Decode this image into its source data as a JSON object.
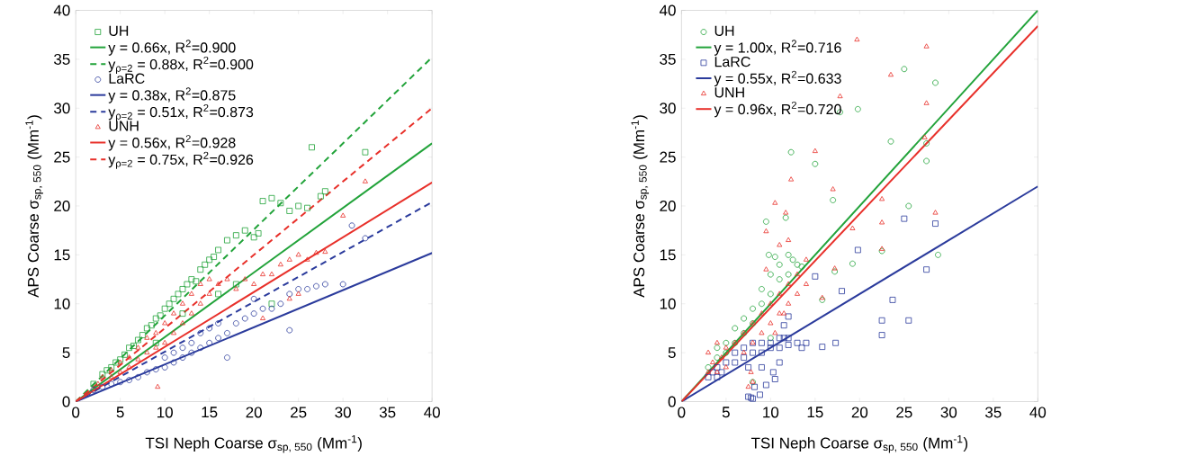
{
  "chart_data": [
    {
      "type": "scatter",
      "xlabel": "TSI Neph Coarse σ$_{sp, 550}$ (Mm$^{-1}$)",
      "ylabel": "APS Coarse σ$_{sp, 550}$ (Mm$^{-1}$)",
      "xlim": [
        0,
        40
      ],
      "ylim": [
        0,
        40
      ],
      "xticks": [
        0,
        5,
        10,
        15,
        20,
        25,
        30,
        35,
        40
      ],
      "yticks": [
        0,
        5,
        10,
        15,
        20,
        25,
        30,
        35,
        40
      ],
      "legend": "top left",
      "series": [
        {
          "name": "UH",
          "color": "#22a33a",
          "marker": "square",
          "x": [
            2,
            3,
            3.5,
            4,
            4.5,
            5,
            5.5,
            6,
            6.5,
            7,
            7.5,
            8,
            8.5,
            9,
            9.5,
            10,
            10.5,
            11,
            11.5,
            12,
            12.5,
            13,
            13.5,
            14,
            14.5,
            15,
            15.5,
            16,
            17,
            18,
            19,
            20,
            20.5,
            22,
            21,
            23,
            24,
            25,
            26,
            26.5,
            27.5,
            28,
            32.5,
            22,
            9,
            12,
            16,
            18
          ],
          "values": [
            1.8,
            2.8,
            3.2,
            3.5,
            4,
            4.3,
            4.8,
            5.5,
            5.7,
            6.3,
            6.8,
            7.5,
            7.8,
            8.5,
            8.8,
            9.5,
            10,
            10.5,
            11,
            11.5,
            12,
            12.5,
            12.3,
            13.5,
            14,
            14.5,
            14.8,
            15.5,
            16.5,
            17,
            17.5,
            16.8,
            17.2,
            20.8,
            20.5,
            20.3,
            19.5,
            20,
            19.8,
            26,
            21,
            21.5,
            25.5,
            10,
            6,
            9,
            11,
            12
          ]
        },
        {
          "name": "y = 0.66x, R$^{2}$=0.900",
          "color": "#22a33a",
          "type": "line",
          "line_style": "solid",
          "x": [
            0,
            40
          ],
          "values": [
            0,
            26.4
          ]
        },
        {
          "name": "y$_{ρ=2}$ = 0.88x, R$^{2}$=0.900",
          "color": "#22a33a",
          "type": "line",
          "line_style": "dashed",
          "x": [
            0,
            40
          ],
          "values": [
            0,
            35.2
          ]
        },
        {
          "name": "LaRC",
          "color": "#2b3b9c",
          "marker": "circle",
          "x": [
            2,
            3,
            4,
            5,
            6,
            7,
            8,
            9,
            10,
            10,
            11,
            11,
            12,
            12,
            13,
            13,
            14,
            14,
            15,
            15,
            16,
            16,
            17,
            17,
            18,
            19,
            20,
            21,
            22,
            23,
            24,
            24,
            25,
            26,
            27,
            28,
            30,
            31,
            32.5,
            20
          ],
          "values": [
            1.2,
            1.5,
            1.8,
            2,
            2.2,
            2.5,
            3,
            3.3,
            3.5,
            4.5,
            4,
            5,
            4.5,
            5.5,
            5,
            6,
            5.5,
            7,
            6,
            7.5,
            6.5,
            8,
            4.5,
            7,
            8,
            8.5,
            9,
            9.5,
            9.5,
            10,
            7.3,
            11,
            11.5,
            11.5,
            11.8,
            12,
            12,
            18,
            16.7,
            10.5
          ]
        },
        {
          "name": "y = 0.38x, R$^{2}$=0.875",
          "color": "#2b3b9c",
          "type": "line",
          "line_style": "solid",
          "x": [
            0,
            40
          ],
          "values": [
            0,
            15.2
          ]
        },
        {
          "name": "y$_{ρ=2}$ = 0.51x, R$^{2}$=0.873",
          "color": "#2b3b9c",
          "type": "line",
          "line_style": "dashed",
          "x": [
            0,
            40
          ],
          "values": [
            0,
            20.4
          ]
        },
        {
          "name": "UNH",
          "color": "#e8302a",
          "marker": "triangle",
          "x": [
            2.5,
            3,
            4,
            4,
            5,
            5,
            6,
            6,
            7,
            7,
            8,
            8,
            9,
            9,
            9.2,
            10,
            10,
            11,
            11,
            12,
            12,
            13,
            13,
            14,
            14,
            15,
            15,
            16,
            17,
            18,
            19,
            20,
            21,
            22,
            23,
            24,
            25,
            26,
            27,
            28,
            30,
            32.5,
            24,
            25,
            21
          ],
          "values": [
            1.8,
            2.5,
            2.5,
            3.2,
            3,
            4,
            3.5,
            4.5,
            4.3,
            5.5,
            5,
            6.5,
            5.5,
            7,
            1.5,
            6,
            8,
            7,
            9,
            8,
            10,
            9,
            11,
            10,
            12,
            11,
            12.5,
            12,
            12.5,
            11.5,
            12.5,
            12,
            13,
            13,
            14,
            14.5,
            15,
            14.5,
            15.2,
            15.3,
            19,
            22.5,
            10.5,
            11,
            8.5
          ]
        },
        {
          "name": "y = 0.56x, R$^{2}$=0.928",
          "color": "#e8302a",
          "type": "line",
          "line_style": "solid",
          "x": [
            0,
            40
          ],
          "values": [
            0,
            22.4
          ]
        },
        {
          "name": "y$_{ρ=2}$ = 0.75x, R$^{2}$=0.926",
          "color": "#e8302a",
          "type": "line",
          "line_style": "dashed",
          "x": [
            0,
            40
          ],
          "values": [
            0,
            30
          ]
        }
      ]
    },
    {
      "type": "scatter",
      "xlabel": "TSI Neph Coarse σ$_{sp, 550}$ (Mm$^{-1}$)",
      "ylabel": "APS Coarse σ$_{sp, 550}$ (Mm$^{-1}$)",
      "xlim": [
        0,
        40
      ],
      "ylim": [
        0,
        40
      ],
      "xticks": [
        0,
        5,
        10,
        15,
        20,
        25,
        30,
        35,
        40
      ],
      "yticks": [
        0,
        5,
        10,
        15,
        20,
        25,
        30,
        35,
        40
      ],
      "legend": "top left",
      "series": [
        {
          "name": "UH",
          "color": "#22a33a",
          "marker": "circle",
          "x": [
            3,
            4,
            4,
            5,
            5,
            6,
            6,
            7,
            7,
            8,
            8,
            9,
            9,
            10,
            10,
            11,
            11,
            12,
            12,
            13,
            9.8,
            10.5,
            12.5,
            13.5,
            8,
            10,
            25,
            28.5,
            17.8,
            19.8,
            12.3,
            15,
            17,
            9.5,
            11.7,
            23.5,
            27.5,
            27.5,
            25.5,
            19.2,
            28.8,
            22.5,
            17.2,
            15.8
          ],
          "values": [
            3.5,
            4.5,
            5.5,
            5,
            6,
            6,
            7.5,
            7,
            8.5,
            8,
            9.5,
            10,
            11.5,
            11,
            13,
            12.5,
            14,
            13,
            15,
            14,
            15,
            14.8,
            14.5,
            13.8,
            2,
            6.5,
            34,
            32.6,
            29.6,
            29.9,
            25.5,
            24.3,
            20.6,
            18.4,
            18.8,
            26.6,
            26.4,
            24.6,
            20,
            14.1,
            15,
            15.4,
            13.3,
            10.4
          ]
        },
        {
          "name": "y = 1.00x, R$^{2}$=0.716",
          "color": "#22a33a",
          "type": "line",
          "line_style": "solid",
          "x": [
            0,
            40
          ],
          "values": [
            0,
            40
          ]
        },
        {
          "name": "LaRC",
          "color": "#2b3b9c",
          "marker": "square",
          "x": [
            3,
            3.5,
            4,
            4,
            4.5,
            5,
            6,
            6,
            7,
            7,
            8,
            8,
            9,
            9,
            10,
            10,
            11,
            11,
            12,
            12,
            13,
            14,
            13.5,
            7.5,
            9,
            10.5,
            11.5,
            19.8,
            25,
            28.5,
            27.5,
            22.5,
            22.5,
            25.5,
            23.7,
            15,
            18,
            17.3,
            15.8,
            12,
            11.5,
            11,
            10.3,
            9.5,
            8.8,
            8,
            7.8,
            8.2,
            7.5
          ],
          "values": [
            2.5,
            3,
            2.5,
            3.5,
            3,
            4,
            4,
            5,
            4.5,
            5.5,
            5,
            6,
            5,
            6,
            5.5,
            6,
            5.5,
            6.5,
            5.8,
            6.5,
            6,
            6,
            5.5,
            3.5,
            3.5,
            2.3,
            7.8,
            15.5,
            18.7,
            18.2,
            13.5,
            8.3,
            6.8,
            8.3,
            10.4,
            12.8,
            11.3,
            6,
            5.6,
            8.7,
            6.5,
            4,
            3,
            1.7,
            0.7,
            0.3,
            0.4,
            1.5,
            0.5
          ]
        },
        {
          "name": "y = 0.55x, R$^{2}$=0.633",
          "color": "#2b3b9c",
          "type": "line",
          "line_style": "solid",
          "x": [
            0,
            40
          ],
          "values": [
            0,
            22
          ]
        },
        {
          "name": "UNH",
          "color": "#e8302a",
          "marker": "triangle",
          "x": [
            3,
            3,
            3.5,
            4,
            4,
            4.5,
            5,
            5,
            6,
            7,
            7,
            8,
            8,
            9,
            9,
            10,
            10,
            11,
            11,
            12,
            12,
            13,
            13,
            14,
            14,
            7.5,
            8,
            7.8,
            10.5,
            11.5,
            9.5,
            11,
            12,
            19.7,
            27.5,
            23.5,
            17.8,
            15,
            12.3,
            10.5,
            11.7,
            9.5,
            17,
            22.5,
            22.5,
            19.2,
            28.5,
            27.3,
            27.5,
            17.2,
            15.8,
            22.5
          ],
          "values": [
            3,
            5,
            4,
            3,
            6,
            4.5,
            5.5,
            3.5,
            6,
            7,
            5,
            8,
            6,
            9,
            7,
            10,
            8,
            11,
            9,
            12,
            10,
            13,
            11,
            14.5,
            12,
            1.5,
            2,
            3,
            7,
            9,
            13.5,
            16,
            16.5,
            37,
            36.3,
            33.4,
            31.2,
            25.6,
            22.7,
            20.3,
            19.3,
            17.4,
            21.7,
            20.7,
            18.3,
            17.7,
            19.3,
            27,
            30.5,
            13.6,
            10.6,
            15.6
          ]
        },
        {
          "name": "y = 0.96x, R$^{2}$=0.720",
          "color": "#e8302a",
          "type": "line",
          "line_style": "solid",
          "x": [
            0,
            40
          ],
          "values": [
            0,
            38.4
          ]
        }
      ]
    }
  ]
}
